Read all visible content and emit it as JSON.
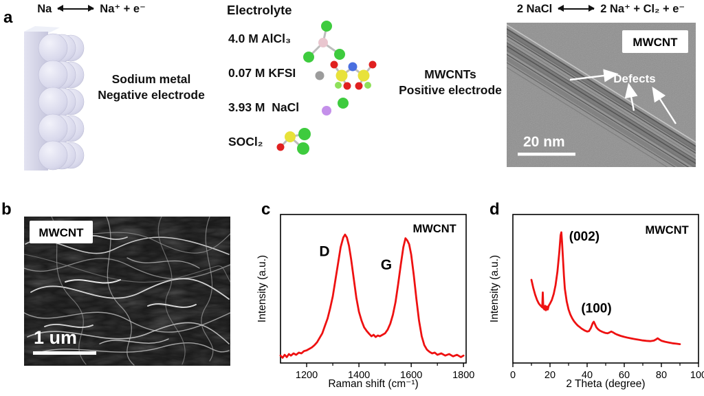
{
  "colors": {
    "curve_red": "#ee1111",
    "sodium_block": "#d9d9ec",
    "cl_green": "#3ecb3e",
    "al_pink": "#e9c6cf",
    "k_gray": "#9c9c9c",
    "s_yellow": "#e8e23a",
    "n_blue": "#4a6fe0",
    "o_red": "#e02020",
    "f_green": "#8ee05a",
    "na_purple": "#c490ea",
    "tem_gray": "#8f8f8f",
    "sem_dark": "#1a1a1a"
  },
  "panels": {
    "a": {
      "label": "a",
      "eq_left": {
        "lhs": "Na",
        "rhs": "Na⁺ + e⁻"
      },
      "electrode_left": {
        "line1": "Sodium metal",
        "line2": "Negative electrode"
      },
      "electrolyte": {
        "title": "Electrolyte",
        "items": [
          {
            "label": "4.0 M AlCl₃",
            "molecule": "alcl3"
          },
          {
            "label": "0.07 M KFSI",
            "molecule": "kfsi"
          },
          {
            "label": "3.93 M  NaCl",
            "molecule": "nacl"
          },
          {
            "label": "SOCl₂",
            "molecule": "socl2"
          }
        ]
      },
      "electrode_right": {
        "line1": "MWCNTs",
        "line2": "Positive electrode"
      },
      "eq_right": {
        "lhs": "2 NaCl",
        "rhs": "2 Na⁺ + Cl₂ + e⁻"
      },
      "tem": {
        "badge": "MWCNT",
        "annotation": "Defects",
        "scalebar": "20 nm"
      }
    },
    "b": {
      "label": "b",
      "badge": "MWCNT",
      "scalebar": "1 um"
    },
    "c": {
      "label": "c"
    },
    "d": {
      "label": "d"
    }
  },
  "chart_data": [
    {
      "id": "raman",
      "type": "line",
      "corner_label": "MWCNT",
      "xlabel": "Raman shift (cm⁻¹)",
      "ylabel": "Intensity (a.u.)",
      "xlim": [
        1100,
        1810
      ],
      "ylim": [
        0,
        1
      ],
      "grid": false,
      "color": "#ee1111",
      "xticks": [
        1200,
        1400,
        1600,
        1800
      ],
      "xticks_minor": [
        1300,
        1500,
        1700
      ],
      "peaks": [
        {
          "name": "D",
          "x": 1345,
          "height_frac": 0.86
        },
        {
          "name": "G",
          "x": 1580,
          "height_frac": 0.84
        }
      ],
      "annotations": [
        {
          "text": "D",
          "xf": 0.237,
          "yf": 0.28,
          "size": 21,
          "bold": true
        },
        {
          "text": "G",
          "xf": 0.57,
          "yf": 0.37,
          "size": 21,
          "bold": true
        },
        {
          "text": "MWCNT",
          "xf": 0.83,
          "yf": 0.12,
          "size": 16.5,
          "bold": true
        }
      ],
      "points": [
        [
          1100,
          0.05
        ],
        [
          1108,
          0.035
        ],
        [
          1116,
          0.055
        ],
        [
          1124,
          0.04
        ],
        [
          1132,
          0.06
        ],
        [
          1140,
          0.05
        ],
        [
          1150,
          0.065
        ],
        [
          1160,
          0.055
        ],
        [
          1170,
          0.07
        ],
        [
          1180,
          0.065
        ],
        [
          1190,
          0.08
        ],
        [
          1200,
          0.085
        ],
        [
          1210,
          0.095
        ],
        [
          1220,
          0.105
        ],
        [
          1230,
          0.12
        ],
        [
          1240,
          0.14
        ],
        [
          1250,
          0.17
        ],
        [
          1260,
          0.2
        ],
        [
          1270,
          0.25
        ],
        [
          1280,
          0.3
        ],
        [
          1290,
          0.37
        ],
        [
          1300,
          0.45
        ],
        [
          1310,
          0.56
        ],
        [
          1320,
          0.67
        ],
        [
          1330,
          0.78
        ],
        [
          1340,
          0.845
        ],
        [
          1347,
          0.865
        ],
        [
          1354,
          0.845
        ],
        [
          1362,
          0.79
        ],
        [
          1370,
          0.7
        ],
        [
          1380,
          0.57
        ],
        [
          1390,
          0.44
        ],
        [
          1400,
          0.345
        ],
        [
          1410,
          0.285
        ],
        [
          1420,
          0.24
        ],
        [
          1430,
          0.215
        ],
        [
          1440,
          0.195
        ],
        [
          1448,
          0.18
        ],
        [
          1456,
          0.19
        ],
        [
          1464,
          0.175
        ],
        [
          1472,
          0.185
        ],
        [
          1480,
          0.18
        ],
        [
          1490,
          0.19
        ],
        [
          1500,
          0.2
        ],
        [
          1510,
          0.225
        ],
        [
          1520,
          0.265
        ],
        [
          1530,
          0.325
        ],
        [
          1540,
          0.41
        ],
        [
          1550,
          0.53
        ],
        [
          1560,
          0.66
        ],
        [
          1570,
          0.78
        ],
        [
          1578,
          0.84
        ],
        [
          1585,
          0.825
        ],
        [
          1592,
          0.8
        ],
        [
          1600,
          0.73
        ],
        [
          1610,
          0.59
        ],
        [
          1620,
          0.43
        ],
        [
          1630,
          0.285
        ],
        [
          1640,
          0.18
        ],
        [
          1650,
          0.12
        ],
        [
          1660,
          0.09
        ],
        [
          1670,
          0.075
        ],
        [
          1680,
          0.065
        ],
        [
          1690,
          0.07
        ],
        [
          1700,
          0.055
        ],
        [
          1715,
          0.065
        ],
        [
          1730,
          0.05
        ],
        [
          1745,
          0.06
        ],
        [
          1760,
          0.045
        ],
        [
          1775,
          0.055
        ],
        [
          1790,
          0.04
        ],
        [
          1800,
          0.05
        ]
      ]
    },
    {
      "id": "xrd",
      "type": "line",
      "corner_label": "MWCNT",
      "xlabel": "2 Theta (degree)",
      "ylabel": "Intensity (a.u.)",
      "xlim": [
        0,
        100
      ],
      "ylim": [
        0,
        1
      ],
      "grid": false,
      "color": "#ee1111",
      "xticks": [
        0,
        20,
        40,
        60,
        80,
        100
      ],
      "xticks_minor": [
        10,
        30,
        50,
        70,
        90
      ],
      "peaks": [
        {
          "name": "(002)",
          "x": 26,
          "height_frac": 0.88
        },
        {
          "name": "(100)",
          "x": 43.5,
          "height_frac": 0.28
        }
      ],
      "annotations": [
        {
          "text": "(002)",
          "xf": 0.385,
          "yf": 0.175,
          "size": 19,
          "bold": true
        },
        {
          "text": "(100)",
          "xf": 0.45,
          "yf": 0.66,
          "size": 19,
          "bold": true
        },
        {
          "text": "MWCNT",
          "xf": 0.83,
          "yf": 0.13,
          "size": 16.5,
          "bold": true
        }
      ],
      "points": [
        [
          10,
          0.56
        ],
        [
          11,
          0.505
        ],
        [
          12,
          0.46
        ],
        [
          13,
          0.425
        ],
        [
          14,
          0.4
        ],
        [
          15,
          0.385
        ],
        [
          15.8,
          0.375
        ],
        [
          16.1,
          0.475
        ],
        [
          16.4,
          0.37
        ],
        [
          17,
          0.36
        ],
        [
          17.4,
          0.385
        ],
        [
          17.8,
          0.355
        ],
        [
          18.3,
          0.38
        ],
        [
          18.8,
          0.36
        ],
        [
          19.3,
          0.385
        ],
        [
          20,
          0.4
        ],
        [
          21,
          0.425
        ],
        [
          22,
          0.465
        ],
        [
          23,
          0.525
        ],
        [
          24,
          0.615
        ],
        [
          25,
          0.745
        ],
        [
          25.7,
          0.86
        ],
        [
          26.1,
          0.88
        ],
        [
          26.5,
          0.815
        ],
        [
          27,
          0.7
        ],
        [
          27.5,
          0.585
        ],
        [
          28,
          0.5
        ],
        [
          29,
          0.415
        ],
        [
          30,
          0.36
        ],
        [
          31,
          0.325
        ],
        [
          32,
          0.3
        ],
        [
          33,
          0.28
        ],
        [
          34,
          0.265
        ],
        [
          35,
          0.252
        ],
        [
          36,
          0.242
        ],
        [
          37,
          0.232
        ],
        [
          38,
          0.224
        ],
        [
          39,
          0.217
        ],
        [
          40,
          0.212
        ],
        [
          41,
          0.215
        ],
        [
          42,
          0.235
        ],
        [
          43,
          0.268
        ],
        [
          43.6,
          0.278
        ],
        [
          44.2,
          0.262
        ],
        [
          45,
          0.24
        ],
        [
          46,
          0.226
        ],
        [
          47,
          0.217
        ],
        [
          48,
          0.211
        ],
        [
          49,
          0.206
        ],
        [
          50,
          0.202
        ],
        [
          51,
          0.2
        ],
        [
          52,
          0.205
        ],
        [
          53,
          0.212
        ],
        [
          54,
          0.206
        ],
        [
          55,
          0.198
        ],
        [
          56,
          0.192
        ],
        [
          58,
          0.183
        ],
        [
          60,
          0.176
        ],
        [
          62,
          0.17
        ],
        [
          64,
          0.165
        ],
        [
          66,
          0.16
        ],
        [
          68,
          0.156
        ],
        [
          70,
          0.152
        ],
        [
          72,
          0.149
        ],
        [
          74,
          0.147
        ],
        [
          76,
          0.151
        ],
        [
          77,
          0.158
        ],
        [
          78,
          0.166
        ],
        [
          79,
          0.158
        ],
        [
          80,
          0.15
        ],
        [
          82,
          0.143
        ],
        [
          84,
          0.138
        ],
        [
          86,
          0.133
        ],
        [
          88,
          0.13
        ],
        [
          90,
          0.127
        ]
      ]
    }
  ]
}
